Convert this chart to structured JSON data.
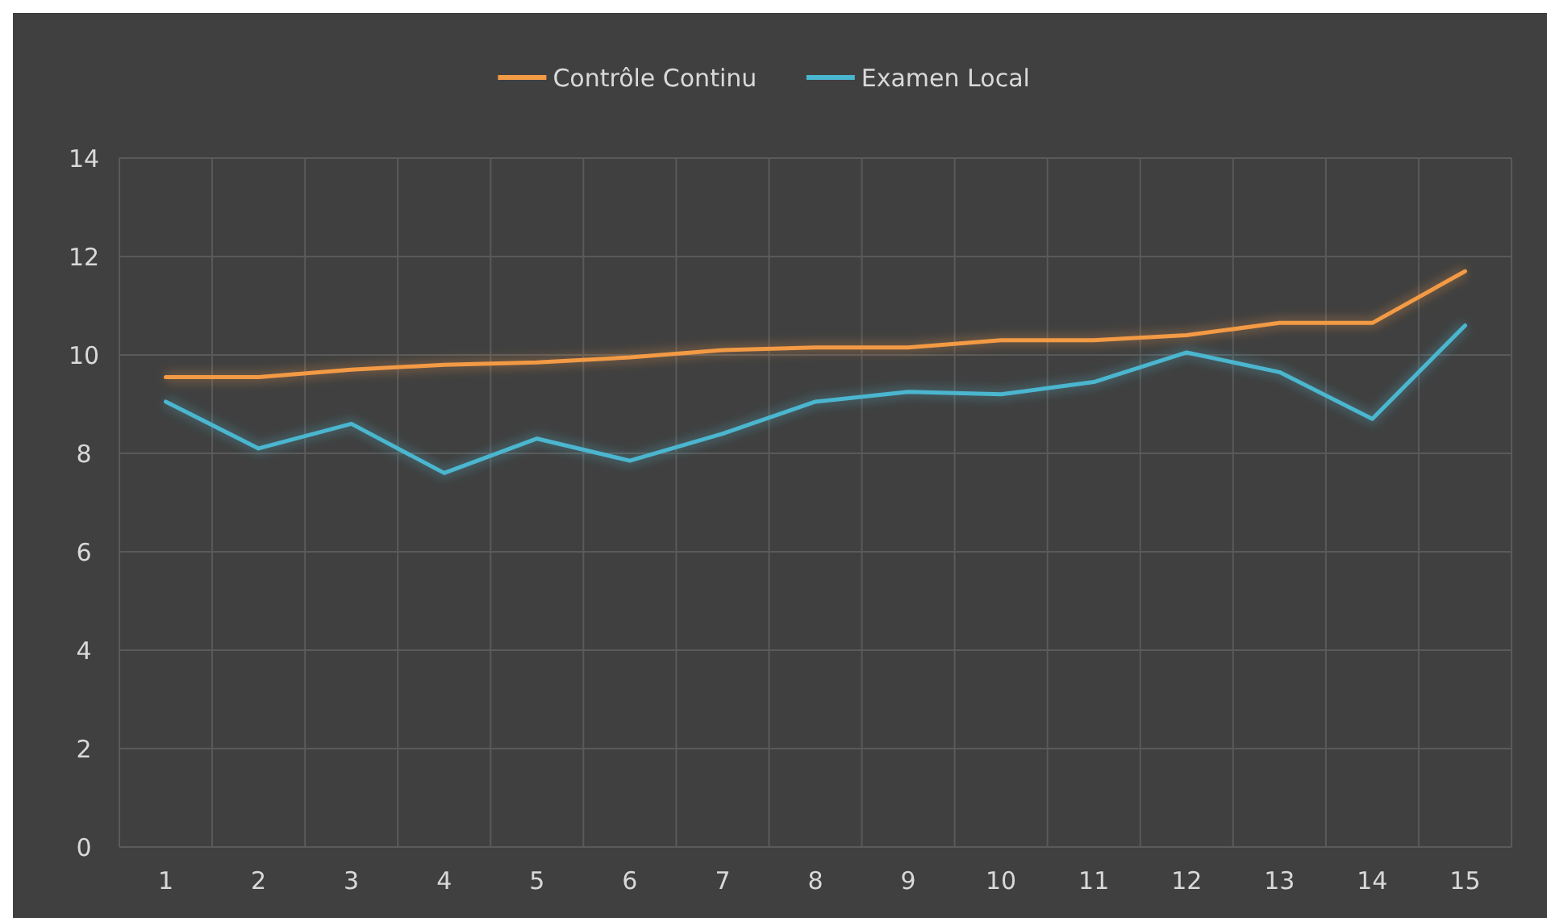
{
  "chart_data": {
    "type": "line",
    "categories": [
      "1",
      "2",
      "3",
      "4",
      "5",
      "6",
      "7",
      "8",
      "9",
      "10",
      "11",
      "12",
      "13",
      "14",
      "15"
    ],
    "series": [
      {
        "name": "Contrôle Continu",
        "color": "#f39a45",
        "values": [
          9.55,
          9.55,
          9.7,
          9.8,
          9.85,
          9.95,
          10.1,
          10.15,
          10.15,
          10.3,
          10.3,
          10.4,
          10.65,
          10.65,
          11.7
        ]
      },
      {
        "name": "Examen Local",
        "color": "#4bb6cf",
        "values": [
          9.05,
          8.1,
          8.6,
          7.6,
          8.3,
          7.85,
          8.4,
          9.05,
          9.25,
          9.2,
          9.45,
          10.05,
          9.65,
          8.7,
          10.6
        ]
      }
    ],
    "ylim": [
      0,
      14
    ],
    "yticks": [
      0,
      2,
      4,
      6,
      8,
      10,
      12,
      14
    ],
    "grid": true,
    "legend": "top",
    "marker": "none",
    "line_style": "solid"
  }
}
